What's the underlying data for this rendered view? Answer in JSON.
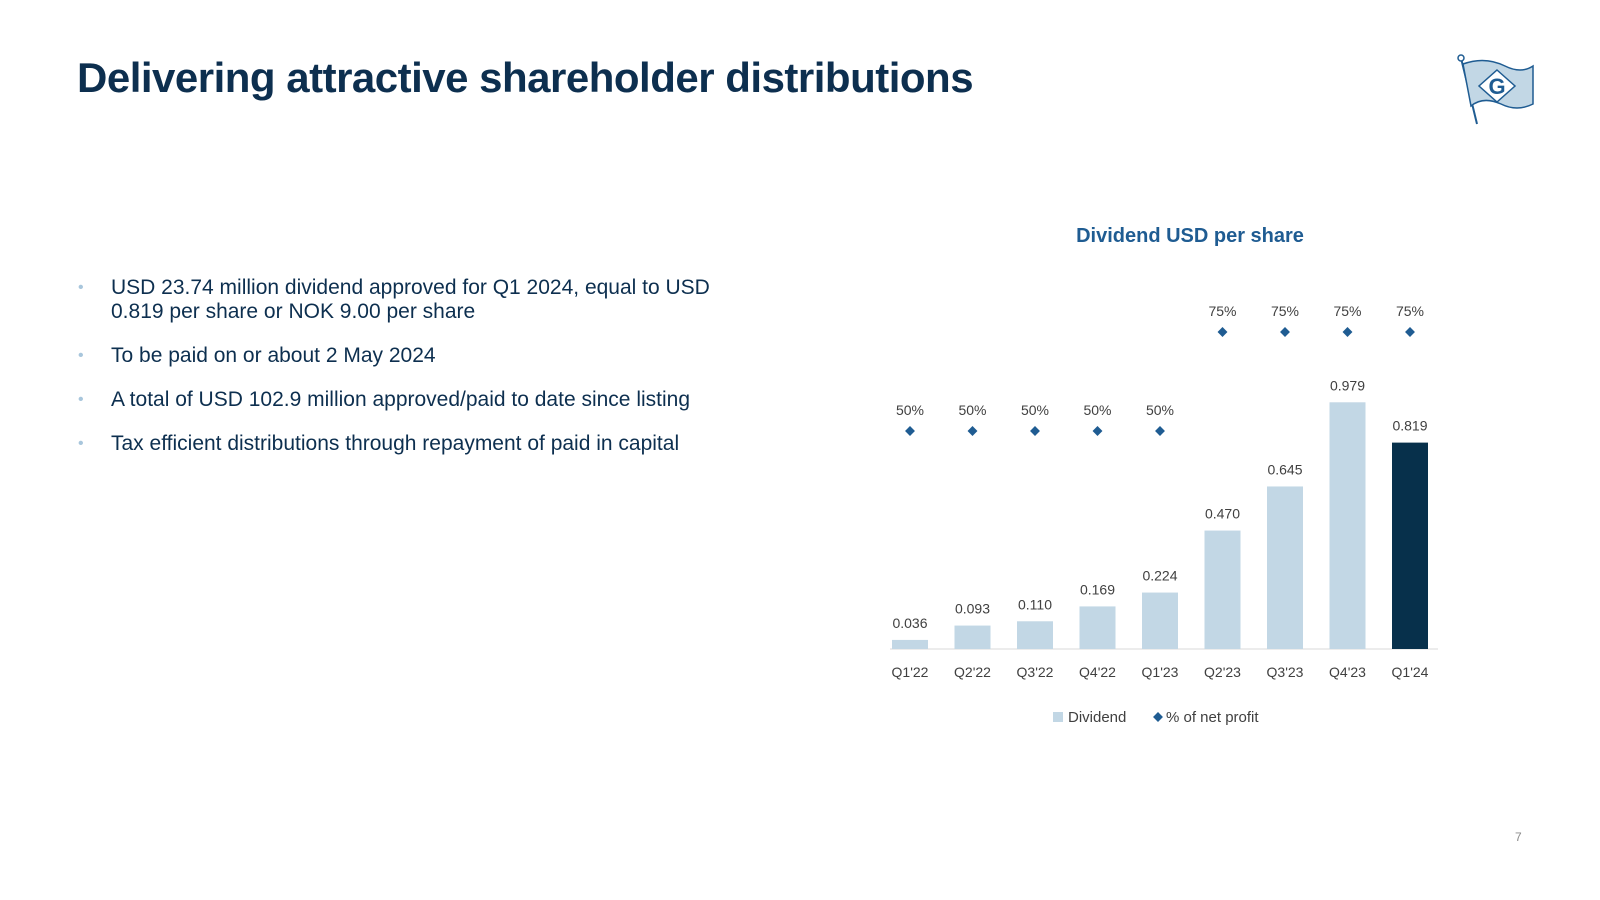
{
  "page": {
    "title": "Delivering attractive shareholder distributions",
    "page_number": "7",
    "bullet_marker": "•",
    "logo_letter": "G"
  },
  "bullets": [
    "USD 23.74 million dividend approved for Q1 2024, equal to USD 0.819 per share or NOK 9.00 per share",
    "To be paid on or about 2 May 2024",
    "A total of USD 102.9 million approved/paid to date since listing",
    "Tax efficient distributions through repayment of paid in capital"
  ],
  "colors": {
    "title": "#0d2f4f",
    "bar": "#c2d7e5",
    "bar_highlight": "#07304b",
    "marker": "#1f5c92",
    "label": "#404040"
  },
  "chart_data": {
    "type": "bar",
    "title": "Dividend USD per share",
    "categories": [
      "Q1'22",
      "Q2'22",
      "Q3'22",
      "Q4'22",
      "Q1'23",
      "Q2'23",
      "Q3'23",
      "Q4'23",
      "Q1'24"
    ],
    "series": [
      {
        "name": "Dividend",
        "type": "bar",
        "values": [
          0.036,
          0.093,
          0.11,
          0.169,
          0.224,
          0.47,
          0.645,
          0.979,
          0.819
        ],
        "labels": [
          "0.036",
          "0.093",
          "0.110",
          "0.169",
          "0.224",
          "0.470",
          "0.645",
          "0.979",
          "0.819"
        ],
        "highlight_index": 8
      },
      {
        "name": "% of net profit",
        "type": "scatter",
        "marker": "diamond",
        "values": [
          50,
          50,
          50,
          50,
          50,
          75,
          75,
          75,
          75
        ],
        "labels": [
          "50%",
          "50%",
          "50%",
          "50%",
          "50%",
          "75%",
          "75%",
          "75%",
          "75%"
        ]
      }
    ],
    "ylim": [
      0,
      1.0
    ],
    "legend": "bottom-center",
    "grid": false
  }
}
